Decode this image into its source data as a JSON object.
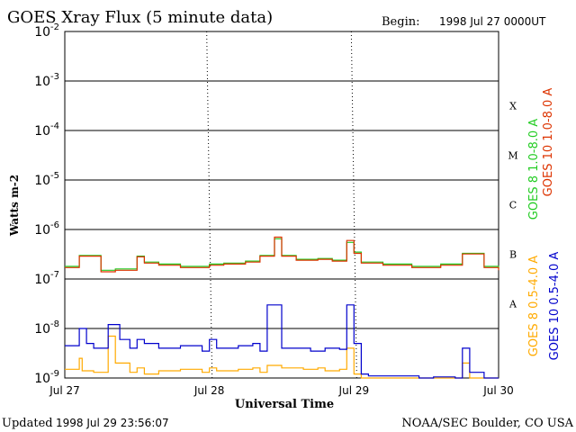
{
  "chart_data": {
    "type": "line",
    "title": "GOES Xray Flux (5 minute data)",
    "begin_label": "Begin:",
    "begin_value": "1998 Jul 27 0000UT",
    "xlabel": "Universal Time",
    "ylabel": "Watts m-2",
    "y_scale": "log",
    "ylim": [
      1e-09,
      0.01
    ],
    "y_ticks": [
      {
        "value": 0.01,
        "base": "10",
        "exp": "-2"
      },
      {
        "value": 0.001,
        "base": "10",
        "exp": "-3"
      },
      {
        "value": 0.0001,
        "base": "10",
        "exp": "-4"
      },
      {
        "value": 1e-05,
        "base": "10",
        "exp": "-5"
      },
      {
        "value": 1e-06,
        "base": "10",
        "exp": "-6"
      },
      {
        "value": 1e-07,
        "base": "10",
        "exp": "-7"
      },
      {
        "value": 1e-08,
        "base": "10",
        "exp": "-8"
      },
      {
        "value": 1e-09,
        "base": "10",
        "exp": "-9"
      }
    ],
    "x_range_days": [
      0,
      3
    ],
    "x_ticks": [
      {
        "day": 0,
        "label": "Jul 27"
      },
      {
        "day": 1,
        "label": "Jul 28"
      },
      {
        "day": 2,
        "label": "Jul 29"
      },
      {
        "day": 3,
        "label": "Jul 30"
      }
    ],
    "flare_classes": [
      {
        "label": "X",
        "value": 0.0001
      },
      {
        "label": "M",
        "value": 1e-05
      },
      {
        "label": "C",
        "value": 1e-06
      },
      {
        "label": "B",
        "value": 1e-07
      },
      {
        "label": "A",
        "value": 1e-08
      }
    ],
    "grid": true,
    "legend_placement": "right",
    "series": [
      {
        "name": "GOES 8 1.0-8.0 A",
        "color": "#22cc22",
        "day": [
          0.0,
          0.1,
          0.25,
          0.35,
          0.5,
          0.55,
          0.65,
          0.8,
          0.9,
          1.0,
          1.1,
          1.25,
          1.35,
          1.45,
          1.5,
          1.6,
          1.75,
          1.85,
          1.95,
          2.0,
          2.05,
          2.2,
          2.4,
          2.6,
          2.75,
          2.9,
          3.0
        ],
        "values": [
          1.8e-07,
          3e-07,
          1.5e-07,
          1.6e-07,
          2.9e-07,
          2.2e-07,
          2e-07,
          1.8e-07,
          1.8e-07,
          2e-07,
          2.1e-07,
          2.3e-07,
          3e-07,
          6.5e-07,
          3e-07,
          2.5e-07,
          2.6e-07,
          2.4e-07,
          5.5e-07,
          3.5e-07,
          2.2e-07,
          2e-07,
          1.8e-07,
          2e-07,
          3.3e-07,
          1.8e-07,
          1.6e-07
        ]
      },
      {
        "name": "GOES 10 1.0-8.0 A",
        "color": "#dd3300",
        "day": [
          0.0,
          0.1,
          0.25,
          0.35,
          0.5,
          0.55,
          0.65,
          0.8,
          0.9,
          1.0,
          1.1,
          1.25,
          1.35,
          1.45,
          1.5,
          1.6,
          1.75,
          1.85,
          1.95,
          2.0,
          2.05,
          2.2,
          2.4,
          2.6,
          2.75,
          2.9,
          3.0
        ],
        "values": [
          1.7e-07,
          2.9e-07,
          1.4e-07,
          1.5e-07,
          2.8e-07,
          2.1e-07,
          1.9e-07,
          1.7e-07,
          1.7e-07,
          1.9e-07,
          2e-07,
          2.2e-07,
          2.9e-07,
          7e-07,
          2.9e-07,
          2.4e-07,
          2.5e-07,
          2.3e-07,
          6e-07,
          3.3e-07,
          2.1e-07,
          1.9e-07,
          1.7e-07,
          1.9e-07,
          3.2e-07,
          1.7e-07,
          1.5e-07
        ]
      },
      {
        "name": "GOES 8 0.5-4.0 A",
        "color": "#ffaa00",
        "day": [
          0.0,
          0.1,
          0.12,
          0.2,
          0.3,
          0.35,
          0.45,
          0.5,
          0.55,
          0.65,
          0.8,
          0.95,
          1.0,
          1.05,
          1.2,
          1.3,
          1.35,
          1.4,
          1.5,
          1.65,
          1.75,
          1.8,
          1.9,
          1.95,
          2.0,
          2.05,
          2.2,
          2.4,
          2.6,
          2.7,
          2.75,
          2.8,
          2.9,
          3.0
        ],
        "values": [
          1.5e-09,
          2.5e-09,
          1.4e-09,
          1.3e-09,
          7e-09,
          2e-09,
          1.3e-09,
          1.6e-09,
          1.2e-09,
          1.4e-09,
          1.5e-09,
          1.3e-09,
          1.6e-09,
          1.4e-09,
          1.5e-09,
          1.6e-09,
          1.3e-09,
          1.8e-09,
          1.6e-09,
          1.5e-09,
          1.6e-09,
          1.4e-09,
          1.5e-09,
          4e-09,
          1.2e-09,
          1e-09,
          1e-09,
          1e-09,
          1e-09,
          1e-09,
          2e-09,
          1e-09,
          1e-09,
          1e-09
        ]
      },
      {
        "name": "GOES 10 0.5-4.0 A",
        "color": "#0000cc",
        "day": [
          0.0,
          0.1,
          0.15,
          0.2,
          0.3,
          0.38,
          0.45,
          0.5,
          0.55,
          0.65,
          0.8,
          0.95,
          1.0,
          1.05,
          1.2,
          1.3,
          1.35,
          1.4,
          1.5,
          1.6,
          1.7,
          1.8,
          1.9,
          1.95,
          2.0,
          2.05,
          2.1,
          2.2,
          2.3,
          2.45,
          2.55,
          2.7,
          2.75,
          2.8,
          2.9,
          3.0
        ],
        "values": [
          4.5e-09,
          1e-08,
          5e-09,
          4e-09,
          1.2e-08,
          6e-09,
          4e-09,
          6e-09,
          5e-09,
          4e-09,
          4.5e-09,
          3.5e-09,
          6e-09,
          4e-09,
          4.5e-09,
          5e-09,
          3.5e-09,
          3e-08,
          4e-09,
          4e-09,
          3.5e-09,
          4e-09,
          3.8e-09,
          3e-08,
          5e-09,
          1.2e-09,
          1.1e-09,
          1.1e-09,
          1.1e-09,
          1e-09,
          1.05e-09,
          1e-09,
          4e-09,
          1.3e-09,
          1e-09,
          1e-09
        ]
      }
    ]
  },
  "footer": {
    "updated_label": "Updated",
    "updated_value": "1998 Jul 29 23:56:07",
    "credit": "NOAA/SEC Boulder, CO USA"
  }
}
